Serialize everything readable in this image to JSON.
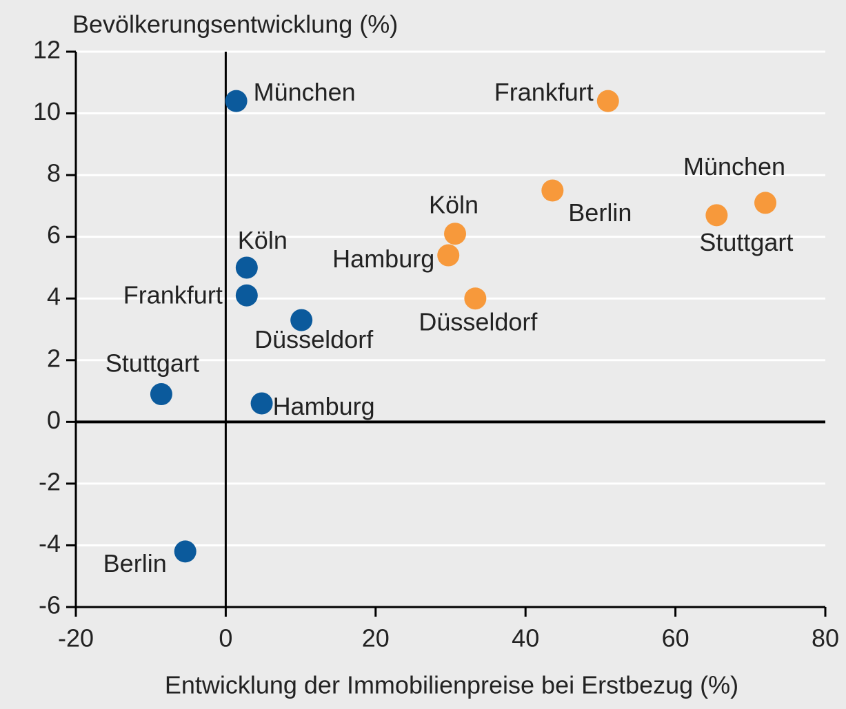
{
  "chart_data": {
    "type": "scatter",
    "y_axis_label": "Bevölkerungsentwicklung (%)",
    "x_axis_label": "Entwicklung der Immobilienpreise bei Erstbezug (%)",
    "xlim": [
      -20,
      80
    ],
    "xticks": [
      -20,
      0,
      20,
      40,
      60,
      80
    ],
    "ylim": [
      -6,
      12
    ],
    "yticks": [
      -6,
      -4,
      -2,
      0,
      2,
      4,
      6,
      8,
      10,
      12
    ],
    "grid": true,
    "series": [
      {
        "color": "#0b5a9c",
        "labels": [
          "München",
          "Köln",
          "Frankfurt",
          "Düsseldorf",
          "Stuttgart",
          "Hamburg",
          "Berlin"
        ],
        "x": [
          1.4,
          2.8,
          2.8,
          10.1,
          -8.6,
          4.8,
          -5.4
        ],
        "values": [
          10.4,
          5.0,
          4.1,
          3.3,
          0.9,
          0.6,
          -4.2
        ]
      },
      {
        "color": "#f7993b",
        "labels": [
          "Frankfurt",
          "Berlin",
          "München",
          "Stuttgart",
          "Köln",
          "Hamburg",
          "Düsseldorf"
        ],
        "x": [
          51.0,
          43.6,
          72.0,
          65.5,
          30.6,
          29.7,
          33.3
        ],
        "values": [
          10.4,
          7.5,
          7.1,
          6.7,
          6.1,
          5.4,
          4.0
        ]
      }
    ]
  }
}
